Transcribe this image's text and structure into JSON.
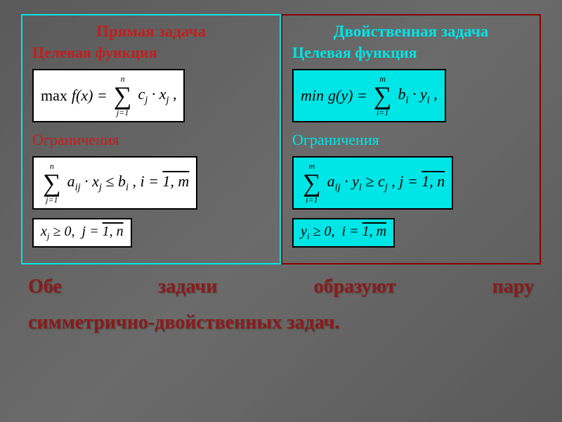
{
  "background_gradient": [
    "#5a5a5a",
    "#6b6b6b",
    "#5a5a5a"
  ],
  "left": {
    "border_color": "#00e5e5",
    "text_color": "#c41e1e",
    "heading": "Прямая задача",
    "subheading": "Целевая функция",
    "formula_bg": "#ffffff",
    "objective": {
      "op": "max",
      "func": "f(x)",
      "sum_upper": "n",
      "sum_lower": "j=1",
      "term_coef": "c",
      "term_coef_sub": "j",
      "term_var": "x",
      "term_var_sub": "j"
    },
    "constraints_label": "Ограничения",
    "constraint1": {
      "sum_upper": "n",
      "sum_lower": "j=1",
      "coef": "a",
      "coef_sub": "ij",
      "var": "x",
      "var_sub": "j",
      "rel": "≤",
      "rhs": "b",
      "rhs_sub": "i",
      "index_var": "i",
      "range": "1, m"
    },
    "constraint2": {
      "var": "x",
      "var_sub": "j",
      "rel": "≥ 0",
      "index_var": "j",
      "range": "1, n"
    }
  },
  "right": {
    "border_color": "#8B0000",
    "text_color": "#00e5e5",
    "heading": "Двойственная задача",
    "subheading": "Целевая функция",
    "formula_bg": "#00e5e5",
    "objective": {
      "op": "min",
      "func": "g(y)",
      "sum_upper": "m",
      "sum_lower": "i=1",
      "term_coef": "b",
      "term_coef_sub": "i",
      "term_var": "y",
      "term_var_sub": "i"
    },
    "constraints_label": "Ограничения",
    "constraint1": {
      "sum_upper": "m",
      "sum_lower": "i=1",
      "coef": "a",
      "coef_sub": "ij",
      "var": "y",
      "var_sub": "i",
      "rel": "≥",
      "rhs": "c",
      "rhs_sub": "j",
      "index_var": "j",
      "range": "1, n"
    },
    "constraint2": {
      "var": "y",
      "var_sub": "i",
      "rel": "≥ 0",
      "index_var": "i",
      "range": "1, m"
    }
  },
  "bottom_line1": "Обе задачи образуют пару",
  "bottom_line2": "симметрично-двойственных задач.",
  "bottom_color": "#8B1A1A",
  "font_family": "Georgia, Times New Roman, serif",
  "formula_font": "Times New Roman, serif"
}
